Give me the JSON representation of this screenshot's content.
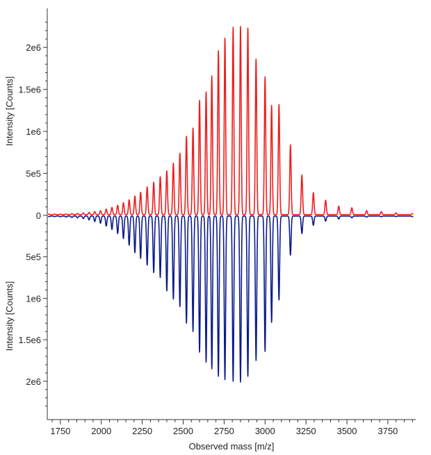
{
  "chart_data": {
    "type": "line",
    "title": "",
    "xlabel": "Observed mass [m/z]",
    "ylabel_top": "Intensity [Counts]",
    "ylabel_bottom": "Intensity [Counts]",
    "xlim": [
      1670,
      3920
    ],
    "ylim_top": [
      0,
      2300000.0
    ],
    "ylim_bottom": [
      0,
      2300000.0
    ],
    "x_ticks": [
      1750,
      2000,
      2250,
      2500,
      2750,
      3000,
      3250,
      3500,
      3750
    ],
    "x_tick_labels": [
      "1750",
      "2000",
      "2250",
      "2500",
      "2750",
      "3000",
      "3250",
      "3500",
      "3750"
    ],
    "y_ticks_top": [
      0,
      500000,
      1000000,
      1500000,
      2000000
    ],
    "y_tick_labels_top": [
      "0",
      "5e5",
      "1e6",
      "1.5e6",
      "2e6"
    ],
    "y_ticks_bottom": [
      500000,
      1000000,
      1500000,
      2000000
    ],
    "y_tick_labels_bottom": [
      "5e5",
      "1e6",
      "1.5e6",
      "2e6"
    ],
    "grid": false,
    "baseline_top": 15000,
    "baseline_bottom": 15000,
    "series": [
      {
        "orientation": "up",
        "color": "#ee1c1c",
        "peaks": [
          {
            "x": 1680,
            "y": 15000
          },
          {
            "x": 1715,
            "y": 15000
          },
          {
            "x": 1750,
            "y": 15000
          },
          {
            "x": 1785,
            "y": 15000
          },
          {
            "x": 1820,
            "y": 20000
          },
          {
            "x": 1855,
            "y": 22000
          },
          {
            "x": 1890,
            "y": 28000
          },
          {
            "x": 1925,
            "y": 35000
          },
          {
            "x": 1960,
            "y": 45000
          },
          {
            "x": 1995,
            "y": 55000
          },
          {
            "x": 2030,
            "y": 75000
          },
          {
            "x": 2065,
            "y": 95000
          },
          {
            "x": 2100,
            "y": 120000
          },
          {
            "x": 2135,
            "y": 150000
          },
          {
            "x": 2170,
            "y": 185000
          },
          {
            "x": 2205,
            "y": 230000
          },
          {
            "x": 2240,
            "y": 275000
          },
          {
            "x": 2280,
            "y": 340000
          },
          {
            "x": 2320,
            "y": 395000
          },
          {
            "x": 2360,
            "y": 460000
          },
          {
            "x": 2400,
            "y": 530000
          },
          {
            "x": 2440,
            "y": 620000
          },
          {
            "x": 2480,
            "y": 740000
          },
          {
            "x": 2520,
            "y": 940000
          },
          {
            "x": 2560,
            "y": 1040000
          },
          {
            "x": 2600,
            "y": 1370000
          },
          {
            "x": 2640,
            "y": 1470000
          },
          {
            "x": 2675,
            "y": 1660000
          },
          {
            "x": 2715,
            "y": 1960000
          },
          {
            "x": 2755,
            "y": 2110000
          },
          {
            "x": 2805,
            "y": 2240000
          },
          {
            "x": 2850,
            "y": 2250000
          },
          {
            "x": 2895,
            "y": 2230000
          },
          {
            "x": 2945,
            "y": 1860000
          },
          {
            "x": 3000,
            "y": 1650000
          },
          {
            "x": 3040,
            "y": 1310000
          },
          {
            "x": 3085,
            "y": 1320000
          },
          {
            "x": 3155,
            "y": 840000
          },
          {
            "x": 3225,
            "y": 480000
          },
          {
            "x": 3295,
            "y": 270000
          },
          {
            "x": 3370,
            "y": 180000
          },
          {
            "x": 3450,
            "y": 110000
          },
          {
            "x": 3530,
            "y": 90000
          },
          {
            "x": 3620,
            "y": 55000
          },
          {
            "x": 3710,
            "y": 45000
          },
          {
            "x": 3800,
            "y": 30000
          },
          {
            "x": 3900,
            "y": 20000
          }
        ]
      },
      {
        "orientation": "down",
        "color": "#0a1a8a",
        "peaks": [
          {
            "x": 1680,
            "y": 15000
          },
          {
            "x": 1715,
            "y": 15000
          },
          {
            "x": 1750,
            "y": 18000
          },
          {
            "x": 1785,
            "y": 20000
          },
          {
            "x": 1820,
            "y": 25000
          },
          {
            "x": 1855,
            "y": 30000
          },
          {
            "x": 1890,
            "y": 40000
          },
          {
            "x": 1925,
            "y": 55000
          },
          {
            "x": 1960,
            "y": 75000
          },
          {
            "x": 1995,
            "y": 95000
          },
          {
            "x": 2030,
            "y": 130000
          },
          {
            "x": 2065,
            "y": 170000
          },
          {
            "x": 2100,
            "y": 220000
          },
          {
            "x": 2135,
            "y": 280000
          },
          {
            "x": 2170,
            "y": 360000
          },
          {
            "x": 2205,
            "y": 450000
          },
          {
            "x": 2240,
            "y": 520000
          },
          {
            "x": 2280,
            "y": 600000
          },
          {
            "x": 2320,
            "y": 690000
          },
          {
            "x": 2360,
            "y": 750000
          },
          {
            "x": 2400,
            "y": 910000
          },
          {
            "x": 2440,
            "y": 1010000
          },
          {
            "x": 2480,
            "y": 1100000
          },
          {
            "x": 2520,
            "y": 1300000
          },
          {
            "x": 2560,
            "y": 1400000
          },
          {
            "x": 2600,
            "y": 1650000
          },
          {
            "x": 2640,
            "y": 1770000
          },
          {
            "x": 2675,
            "y": 1850000
          },
          {
            "x": 2715,
            "y": 1940000
          },
          {
            "x": 2755,
            "y": 1980000
          },
          {
            "x": 2805,
            "y": 2000000
          },
          {
            "x": 2850,
            "y": 2010000
          },
          {
            "x": 2895,
            "y": 1940000
          },
          {
            "x": 2945,
            "y": 1750000
          },
          {
            "x": 3000,
            "y": 1640000
          },
          {
            "x": 3040,
            "y": 1290000
          },
          {
            "x": 3085,
            "y": 1020000
          },
          {
            "x": 3155,
            "y": 480000
          },
          {
            "x": 3225,
            "y": 220000
          },
          {
            "x": 3295,
            "y": 120000
          },
          {
            "x": 3370,
            "y": 70000
          },
          {
            "x": 3450,
            "y": 45000
          },
          {
            "x": 3530,
            "y": 30000
          },
          {
            "x": 3620,
            "y": 22000
          },
          {
            "x": 3710,
            "y": 18000
          },
          {
            "x": 3800,
            "y": 15000
          },
          {
            "x": 3900,
            "y": 15000
          }
        ]
      }
    ]
  }
}
